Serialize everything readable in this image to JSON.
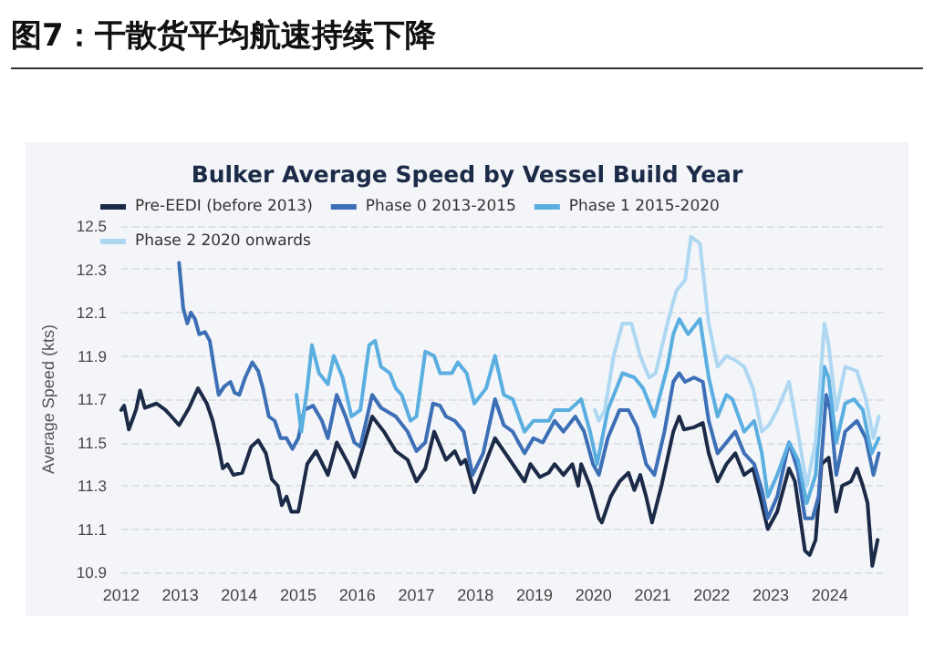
{
  "chart_data": {
    "type": "line",
    "title": "图7：干散货平均航速持续下降",
    "subtitle": "Bulker Average Speed by Vessel Build Year",
    "ylabel": "Average Speed (kts)",
    "xlim": [
      2012,
      2024.9
    ],
    "xticks": [
      2012,
      2013,
      2014,
      2015,
      2016,
      2017,
      2018,
      2019,
      2020,
      2021,
      2022,
      2023,
      2024
    ],
    "ylim": [
      10.9,
      12.5
    ],
    "yticks": [
      10.9,
      11.1,
      11.3,
      11.5,
      11.7,
      11.9,
      12.1,
      12.3,
      12.5
    ],
    "grid": "y",
    "legend": "top",
    "marker": "none",
    "line_style": "solid",
    "series": [
      {
        "name": "Pre-EEDI (before 2013)",
        "color": "#1b2a47",
        "x": [
          2012.0,
          2012.05,
          2012.13,
          2012.25,
          2012.32,
          2012.4,
          2012.6,
          2012.75,
          2012.85,
          2012.98,
          2013.15,
          2013.3,
          2013.45,
          2013.55,
          2013.65,
          2013.72,
          2013.8,
          2013.9,
          2014.05,
          2014.2,
          2014.32,
          2014.45,
          2014.55,
          2014.65,
          2014.72,
          2014.8,
          2014.88,
          2015.0,
          2015.15,
          2015.3,
          2015.5,
          2015.65,
          2015.85,
          2015.95,
          2016.25,
          2016.45,
          2016.65,
          2016.85,
          2017.0,
          2017.15,
          2017.3,
          2017.5,
          2017.65,
          2017.75,
          2017.83,
          2017.98,
          2018.33,
          2018.63,
          2018.83,
          2018.93,
          2019.09,
          2019.24,
          2019.34,
          2019.49,
          2019.64,
          2019.74,
          2019.79,
          2019.94,
          2020.09,
          2020.14,
          2020.29,
          2020.44,
          2020.59,
          2020.69,
          2020.79,
          2020.89,
          2020.99,
          2021.15,
          2021.35,
          2021.45,
          2021.53,
          2021.7,
          2021.85,
          2021.95,
          2022.1,
          2022.25,
          2022.4,
          2022.55,
          2022.7,
          2022.82,
          2022.95,
          2023.11,
          2023.23,
          2023.31,
          2023.41,
          2023.58,
          2023.66,
          2023.76,
          2023.86,
          2023.98,
          2024.11,
          2024.21,
          2024.36,
          2024.46,
          2024.56,
          2024.64,
          2024.72,
          2024.81
        ],
        "values": [
          11.65,
          11.67,
          11.56,
          11.65,
          11.74,
          11.66,
          11.68,
          11.65,
          11.62,
          11.58,
          11.66,
          11.75,
          11.68,
          11.6,
          11.48,
          11.38,
          11.4,
          11.35,
          11.36,
          11.48,
          11.51,
          11.45,
          11.33,
          11.3,
          11.21,
          11.25,
          11.18,
          11.18,
          11.4,
          11.46,
          11.35,
          11.5,
          11.4,
          11.34,
          11.62,
          11.55,
          11.46,
          11.42,
          11.32,
          11.38,
          11.55,
          11.42,
          11.46,
          11.4,
          11.42,
          11.27,
          11.52,
          11.4,
          11.32,
          11.4,
          11.34,
          11.36,
          11.4,
          11.35,
          11.4,
          11.3,
          11.4,
          11.3,
          11.15,
          11.13,
          11.25,
          11.32,
          11.36,
          11.28,
          11.35,
          11.25,
          11.13,
          11.3,
          11.55,
          11.62,
          11.56,
          11.57,
          11.59,
          11.45,
          11.32,
          11.4,
          11.45,
          11.35,
          11.38,
          11.25,
          11.1,
          11.18,
          11.3,
          11.38,
          11.32,
          11.0,
          10.98,
          11.05,
          11.4,
          11.43,
          11.18,
          11.3,
          11.32,
          11.38,
          11.3,
          11.22,
          10.93,
          11.05
        ]
      },
      {
        "name": "Phase 0 2013-2015",
        "color": "#3d6fb6",
        "x": [
          2012.98,
          2013.05,
          2013.12,
          2013.18,
          2013.25,
          2013.32,
          2013.42,
          2013.5,
          2013.57,
          2013.65,
          2013.75,
          2013.85,
          2013.92,
          2014.0,
          2014.1,
          2014.22,
          2014.32,
          2014.4,
          2014.5,
          2014.6,
          2014.7,
          2014.8,
          2014.9,
          2015.0,
          2015.1,
          2015.25,
          2015.4,
          2015.5,
          2015.65,
          2015.8,
          2015.95,
          2016.05,
          2016.25,
          2016.4,
          2016.65,
          2016.85,
          2017.0,
          2017.15,
          2017.28,
          2017.4,
          2017.5,
          2017.65,
          2017.8,
          2017.95,
          2018.13,
          2018.33,
          2018.48,
          2018.63,
          2018.83,
          2018.98,
          2019.14,
          2019.34,
          2019.49,
          2019.69,
          2019.84,
          2019.99,
          2020.09,
          2020.24,
          2020.44,
          2020.59,
          2020.74,
          2020.89,
          2021.03,
          2021.2,
          2021.35,
          2021.45,
          2021.55,
          2021.7,
          2021.85,
          2021.95,
          2022.1,
          2022.25,
          2022.4,
          2022.55,
          2022.72,
          2022.85,
          2022.95,
          2023.11,
          2023.31,
          2023.46,
          2023.58,
          2023.71,
          2023.81,
          2023.94,
          2024.01,
          2024.11,
          2024.26,
          2024.46,
          2024.61,
          2024.74,
          2024.83
        ],
        "values": [
          12.33,
          12.12,
          12.05,
          12.1,
          12.07,
          12.0,
          12.01,
          11.97,
          11.85,
          11.72,
          11.76,
          11.78,
          11.73,
          11.72,
          11.8,
          11.87,
          11.83,
          11.75,
          11.62,
          11.6,
          11.52,
          11.52,
          11.47,
          11.52,
          11.65,
          11.67,
          11.6,
          11.52,
          11.72,
          11.62,
          11.5,
          11.48,
          11.72,
          11.66,
          11.62,
          11.55,
          11.46,
          11.5,
          11.68,
          11.67,
          11.62,
          11.6,
          11.55,
          11.35,
          11.45,
          11.7,
          11.58,
          11.55,
          11.45,
          11.52,
          11.5,
          11.6,
          11.55,
          11.62,
          11.55,
          11.4,
          11.35,
          11.52,
          11.65,
          11.65,
          11.57,
          11.4,
          11.35,
          11.55,
          11.78,
          11.82,
          11.78,
          11.8,
          11.78,
          11.6,
          11.45,
          11.5,
          11.55,
          11.45,
          11.4,
          11.28,
          11.15,
          11.25,
          11.5,
          11.37,
          11.15,
          11.15,
          11.25,
          11.72,
          11.65,
          11.35,
          11.55,
          11.6,
          11.52,
          11.35,
          11.45
        ]
      },
      {
        "name": "Phase 1 2015-2020",
        "color": "#5aaee0",
        "x": [
          2014.97,
          2015.05,
          2015.15,
          2015.23,
          2015.35,
          2015.5,
          2015.6,
          2015.75,
          2015.9,
          2016.05,
          2016.2,
          2016.3,
          2016.4,
          2016.55,
          2016.65,
          2016.75,
          2016.9,
          2017.0,
          2017.15,
          2017.3,
          2017.4,
          2017.6,
          2017.7,
          2017.85,
          2017.98,
          2018.18,
          2018.33,
          2018.48,
          2018.63,
          2018.83,
          2018.98,
          2019.24,
          2019.34,
          2019.59,
          2019.79,
          2019.94,
          2020.06,
          2020.24,
          2020.49,
          2020.69,
          2020.84,
          2021.03,
          2021.25,
          2021.35,
          2021.45,
          2021.6,
          2021.8,
          2021.95,
          2022.1,
          2022.25,
          2022.35,
          2022.55,
          2022.72,
          2022.85,
          2022.95,
          2023.11,
          2023.31,
          2023.46,
          2023.61,
          2023.76,
          2023.91,
          2023.98,
          2024.11,
          2024.26,
          2024.41,
          2024.56,
          2024.71,
          2024.83
        ],
        "values": [
          11.72,
          11.55,
          11.75,
          11.95,
          11.82,
          11.77,
          11.9,
          11.8,
          11.62,
          11.65,
          11.95,
          11.97,
          11.85,
          11.82,
          11.75,
          11.72,
          11.6,
          11.62,
          11.92,
          11.9,
          11.82,
          11.82,
          11.87,
          11.82,
          11.68,
          11.75,
          11.9,
          11.72,
          11.7,
          11.55,
          11.6,
          11.6,
          11.65,
          11.65,
          11.7,
          11.55,
          11.4,
          11.65,
          11.82,
          11.8,
          11.75,
          11.62,
          11.85,
          12.0,
          12.07,
          12.0,
          12.07,
          11.8,
          11.62,
          11.72,
          11.7,
          11.55,
          11.6,
          11.45,
          11.25,
          11.35,
          11.5,
          11.42,
          11.22,
          11.35,
          11.85,
          11.8,
          11.5,
          11.68,
          11.7,
          11.65,
          11.45,
          11.52
        ]
      },
      {
        "name": "Phase 2 2020 onwards",
        "color": "#aed8f2",
        "x": [
          2020.02,
          2020.09,
          2020.19,
          2020.34,
          2020.49,
          2020.64,
          2020.79,
          2020.94,
          2021.05,
          2021.25,
          2021.4,
          2021.55,
          2021.65,
          2021.8,
          2021.95,
          2022.1,
          2022.25,
          2022.4,
          2022.55,
          2022.7,
          2022.85,
          2022.97,
          2023.11,
          2023.31,
          2023.46,
          2023.61,
          2023.76,
          2023.91,
          2023.98,
          2024.11,
          2024.26,
          2024.46,
          2024.61,
          2024.74,
          2024.83
        ],
        "values": [
          11.65,
          11.6,
          11.65,
          11.9,
          12.05,
          12.05,
          11.9,
          11.8,
          11.82,
          12.05,
          12.2,
          12.25,
          12.45,
          12.42,
          12.05,
          11.85,
          11.9,
          11.88,
          11.85,
          11.75,
          11.55,
          11.58,
          11.65,
          11.78,
          11.55,
          11.3,
          11.5,
          12.05,
          11.95,
          11.65,
          11.85,
          11.83,
          11.7,
          11.52,
          11.62
        ]
      }
    ]
  }
}
